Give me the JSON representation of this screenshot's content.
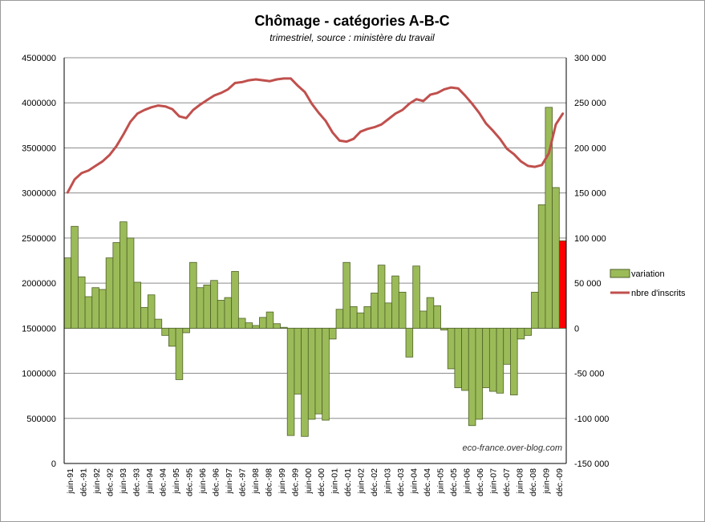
{
  "chart_data": {
    "type": "bar",
    "title": "Chômage - catégories A-B-C",
    "subtitle": "trimestriel, source : ministère du travail",
    "credit": "eco-france.over-blog.com",
    "x_ticks": [
      "juin-91",
      "déc.-91",
      "juin-92",
      "déc.-92",
      "juin-93",
      "déc.-93",
      "juin-94",
      "déc.-94",
      "juin-95",
      "déc.-95",
      "juin-96",
      "déc.-96",
      "juin-97",
      "déc.-97",
      "juin-98",
      "déc.-98",
      "juin-99",
      "déc.-99",
      "juin-00",
      "déc.-00",
      "juin-01",
      "déc.-01",
      "juin-02",
      "déc.-02",
      "juin-03",
      "déc.-03",
      "juin-04",
      "déc.-04",
      "juin-05",
      "déc.-05",
      "juin-06",
      "déc.-06",
      "juin-07",
      "déc.-07",
      "juin-08",
      "déc.-08",
      "juin-09",
      "déc.-09"
    ],
    "y_left": {
      "min": 0,
      "max": 4500000,
      "step": 500000,
      "tick_labels": [
        "0",
        "500000",
        "1000000",
        "1500000",
        "2000000",
        "2500000",
        "3000000",
        "3500000",
        "4000000",
        "4500000"
      ]
    },
    "y_right": {
      "min": -150000,
      "max": 300000,
      "step": 50000,
      "tick_labels": [
        "-150 000",
        "-100 000",
        "-50 000",
        "0",
        "50 000",
        "100 000",
        "150 000",
        "200 000",
        "250 000",
        "300 000"
      ]
    },
    "grid": true,
    "legend_position": "right",
    "colors": {
      "bar": "#9bbb59",
      "bar_border": "#4f6228",
      "highlight_bar": "#ff0000",
      "line": "#c0504d",
      "grid": "#8c8c8c"
    },
    "series": [
      {
        "name": "variation",
        "type": "bar",
        "axis": "right",
        "highlight_last": true,
        "values": [
          78000,
          113000,
          57000,
          35000,
          45000,
          43000,
          78000,
          95000,
          118000,
          100000,
          51000,
          23000,
          37000,
          10000,
          -8000,
          -20000,
          -57000,
          -5000,
          73000,
          45000,
          48000,
          53000,
          31000,
          34000,
          63000,
          11000,
          6000,
          3000,
          12000,
          18000,
          5000,
          1000,
          -119000,
          -73000,
          -120000,
          -101000,
          -95000,
          -102000,
          -12000,
          21000,
          73000,
          24000,
          17000,
          24000,
          39000,
          70000,
          28000,
          58000,
          40000,
          -32000,
          69000,
          19000,
          34000,
          25000,
          -2000,
          -45000,
          -66000,
          -69000,
          -108000,
          -101000,
          -66000,
          -70000,
          -72000,
          -40000,
          -74000,
          -12000,
          -8000,
          40000,
          137000,
          245000,
          156000,
          97000
        ]
      },
      {
        "name": "nbre d'inscrits",
        "type": "line",
        "axis": "left",
        "values": [
          3005000,
          3150000,
          3220000,
          3250000,
          3300000,
          3350000,
          3420000,
          3520000,
          3650000,
          3790000,
          3880000,
          3920000,
          3950000,
          3970000,
          3960000,
          3930000,
          3850000,
          3830000,
          3920000,
          3980000,
          4030000,
          4080000,
          4110000,
          4150000,
          4220000,
          4230000,
          4250000,
          4260000,
          4250000,
          4240000,
          4260000,
          4270000,
          4270000,
          4190000,
          4120000,
          3990000,
          3890000,
          3800000,
          3670000,
          3580000,
          3570000,
          3600000,
          3680000,
          3710000,
          3730000,
          3760000,
          3820000,
          3880000,
          3920000,
          3990000,
          4040000,
          4020000,
          4090000,
          4110000,
          4150000,
          4170000,
          4160000,
          4080000,
          3990000,
          3890000,
          3770000,
          3690000,
          3600000,
          3490000,
          3430000,
          3350000,
          3300000,
          3290000,
          3310000,
          3440000,
          3760000,
          3880000
        ]
      }
    ]
  }
}
